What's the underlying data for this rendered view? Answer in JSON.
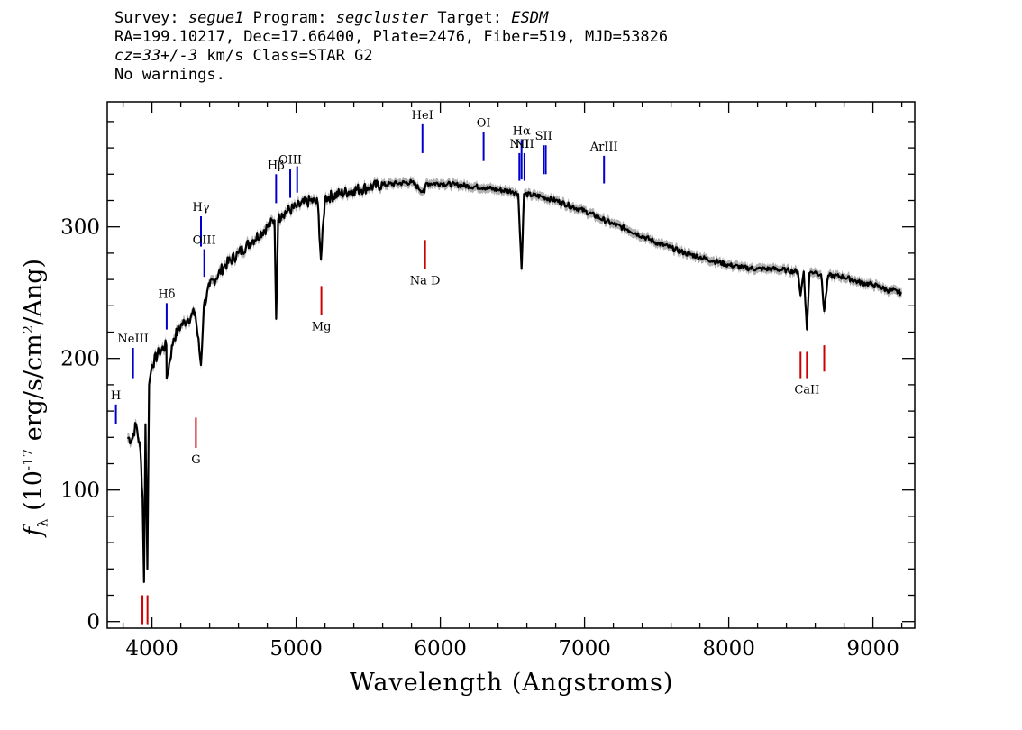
{
  "header": {
    "survey_label": "Survey:",
    "survey": "segue1",
    "program_label": "Program:",
    "program": "segcluster",
    "target_label": "Target:",
    "target": "ESDM",
    "line2": "RA=199.10217, Dec=17.66400, Plate=2476, Fiber=519, MJD=53826",
    "cz": "cz=33+/-3",
    "cz_rest": " km/s Class=STAR G2",
    "line4": "No warnings."
  },
  "chart_data": {
    "type": "line",
    "xlabel": "Wavelength (Angstroms)",
    "ylabel_prefix": "f",
    "ylabel_sub": "λ",
    "ylabel_rest": " (10",
    "ylabel_exp": "-17",
    "ylabel_rest2": " erg/s/cm",
    "ylabel_exp2": "2",
    "ylabel_rest3": "/Ang)",
    "xlim": [
      3690,
      9290
    ],
    "ylim": [
      -5,
      395
    ],
    "xticks": [
      4000,
      5000,
      6000,
      7000,
      8000,
      9000
    ],
    "yticks": [
      0,
      100,
      200,
      300
    ],
    "spectrum_color": "#000000",
    "error_band_color": "#b0b0b0",
    "series": [
      {
        "x": [
          3830,
          3860,
          3890,
          3920,
          3935,
          3945,
          3955,
          3968,
          3980,
          4000,
          4050,
          4100,
          4102,
          4150,
          4200,
          4250,
          4300,
          4340,
          4360,
          4400,
          4500,
          4600,
          4700,
          4800,
          4850,
          4861,
          4875,
          4900,
          5000,
          5100,
          5150,
          5172,
          5200,
          5300,
          5400,
          5500,
          5600,
          5700,
          5800,
          5890,
          5900,
          6000,
          6100,
          6200,
          6300,
          6400,
          6500,
          6540,
          6563,
          6580,
          6700,
          6800,
          6900,
          7000,
          7100,
          7200,
          7300,
          7400,
          7500,
          7600,
          7700,
          7800,
          7900,
          8000,
          8100,
          8200,
          8300,
          8400,
          8480,
          8498,
          8520,
          8542,
          8560,
          8600,
          8640,
          8662,
          8690,
          8800,
          8900,
          9000,
          9100,
          9200
        ],
        "y": [
          140,
          138,
          150,
          130,
          95,
          30,
          150,
          40,
          180,
          195,
          205,
          210,
          185,
          215,
          225,
          230,
          235,
          195,
          240,
          255,
          270,
          280,
          290,
          300,
          305,
          230,
          305,
          310,
          315,
          320,
          318,
          275,
          322,
          325,
          328,
          330,
          332,
          333,
          334,
          326,
          333,
          333,
          332,
          331,
          330,
          328,
          327,
          325,
          268,
          325,
          323,
          320,
          316,
          312,
          307,
          302,
          298,
          293,
          288,
          284,
          280,
          277,
          274,
          271,
          269,
          268,
          268,
          267,
          266,
          248,
          266,
          222,
          265,
          266,
          264,
          236,
          263,
          262,
          258,
          256,
          252,
          250
        ]
      }
    ],
    "emission_lines": [
      {
        "label": "H",
        "wl": 3750,
        "label_prefix_hidden": "",
        "ytop": 165,
        "ybot": 150,
        "color": "#0000cc"
      },
      {
        "label": "NeIII",
        "wl": 3869,
        "ytop": 208,
        "ybot": 185,
        "color": "#0000cc"
      },
      {
        "label": "Hδ",
        "wl": 4102,
        "ytop": 242,
        "ybot": 222,
        "color": "#0000cc"
      },
      {
        "label": "Hγ",
        "wl": 4340,
        "ytop": 308,
        "ybot": 285,
        "color": "#0000cc"
      },
      {
        "label": "OIII",
        "wl": 4363,
        "ytop": 283,
        "ybot": 262,
        "color": "#0000cc"
      },
      {
        "label": "Hβ",
        "wl": 4861,
        "ytop": 340,
        "ybot": 318,
        "color": "#0000cc"
      },
      {
        "label": "OIII",
        "wl": 4959,
        "ytop": 344,
        "ybot": 322,
        "color": "#0000cc"
      },
      {
        "label": "",
        "wl": 5007,
        "ytop": 346,
        "ybot": 326,
        "color": "#0000cc"
      },
      {
        "label": "HeI",
        "wl": 5876,
        "ytop": 378,
        "ybot": 356,
        "color": "#0000cc"
      },
      {
        "label": "OI",
        "wl": 6300,
        "ytop": 372,
        "ybot": 350,
        "color": "#0000cc"
      },
      {
        "label": "NII",
        "wl": 6548,
        "ytop": 356,
        "ybot": 335,
        "color": "#0000cc"
      },
      {
        "label": "Hα",
        "wl": 6563,
        "ytop": 366,
        "ybot": 336,
        "color": "#0000cc"
      },
      {
        "label": "NII",
        "wl": 6583,
        "ytop": 356,
        "ybot": 335,
        "color": "#0000cc"
      },
      {
        "label": "SII",
        "wl": 6716,
        "ytop": 362,
        "ybot": 340,
        "color": "#0000cc"
      },
      {
        "label": "",
        "wl": 6731,
        "ytop": 362,
        "ybot": 340,
        "color": "#0000cc"
      },
      {
        "label": "ArIII",
        "wl": 7135,
        "ytop": 354,
        "ybot": 333,
        "color": "#0000cc"
      }
    ],
    "absorption_lines": [
      {
        "label": "",
        "wl": 3934,
        "ytop": 20,
        "ybot": -2,
        "color": "#cc0000"
      },
      {
        "label": "",
        "wl": 3969,
        "ytop": 20,
        "ybot": -2,
        "color": "#cc0000"
      },
      {
        "label": "G",
        "wl": 4305,
        "ytop": 155,
        "ybot": 132,
        "color": "#cc0000"
      },
      {
        "label": "Mg",
        "wl": 5175,
        "ytop": 255,
        "ybot": 233,
        "color": "#cc0000"
      },
      {
        "label": "Na  D",
        "wl": 5894,
        "ytop": 290,
        "ybot": 268,
        "color": "#cc0000"
      },
      {
        "label": "",
        "wl": 8498,
        "ytop": 205,
        "ybot": 185,
        "color": "#cc0000"
      },
      {
        "label": "CaII",
        "wl": 8542,
        "ytop": 205,
        "ybot": 185,
        "color": "#cc0000"
      },
      {
        "label": "",
        "wl": 8662,
        "ytop": 210,
        "ybot": 190,
        "color": "#cc0000"
      }
    ]
  }
}
